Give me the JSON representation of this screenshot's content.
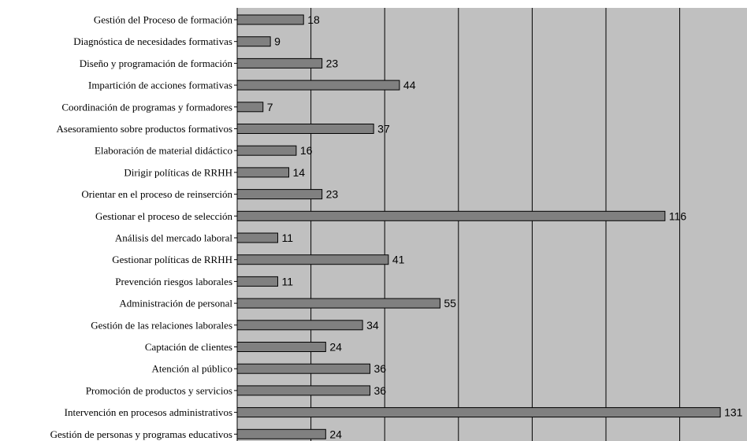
{
  "chart_data": {
    "type": "bar",
    "orientation": "horizontal",
    "title": "",
    "xlabel": "",
    "ylabel": "",
    "categories": [
      "Gestión del Proceso de formación",
      "Diagnóstica de necesidades formativas",
      "Diseño y programación de formación",
      "Impartición de acciones formativas",
      "Coordinación de programas y formadores",
      "Asesoramiento sobre productos formativos",
      "Elaboración de material didáctico",
      "Dirigir políticas de RRHH",
      "Orientar en el proceso de reinserción",
      "Gestionar el proceso de selección",
      "Análisis del mercado laboral",
      "Gestionar políticas de RRHH",
      "Prevención riesgos laborales",
      "Administración de personal",
      "Gestión de las relaciones laborales",
      "Captación de clientes",
      "Atención al público",
      "Promoción de productos y servicios",
      "Intervención en procesos administrativos",
      "Gestión de personas y programas educativos"
    ],
    "values": [
      18,
      9,
      23,
      44,
      7,
      37,
      16,
      14,
      23,
      116,
      11,
      41,
      11,
      55,
      34,
      24,
      36,
      36,
      131,
      24
    ],
    "data_labels": [
      "18",
      "9",
      "23",
      "44",
      "7",
      "37",
      "16",
      "14",
      "23",
      "116",
      "11",
      "41",
      "11",
      "55",
      "34",
      "24",
      "36",
      "36",
      "131",
      "24"
    ],
    "xlim": [
      0,
      140
    ],
    "grid_step": 20,
    "grid": true,
    "legend": "none",
    "colors": {
      "plot_background": "#c0c0c0",
      "bar_fill": "#808080",
      "bar_stroke": "#000000",
      "gridline": "#000000",
      "text": "#000000"
    }
  }
}
